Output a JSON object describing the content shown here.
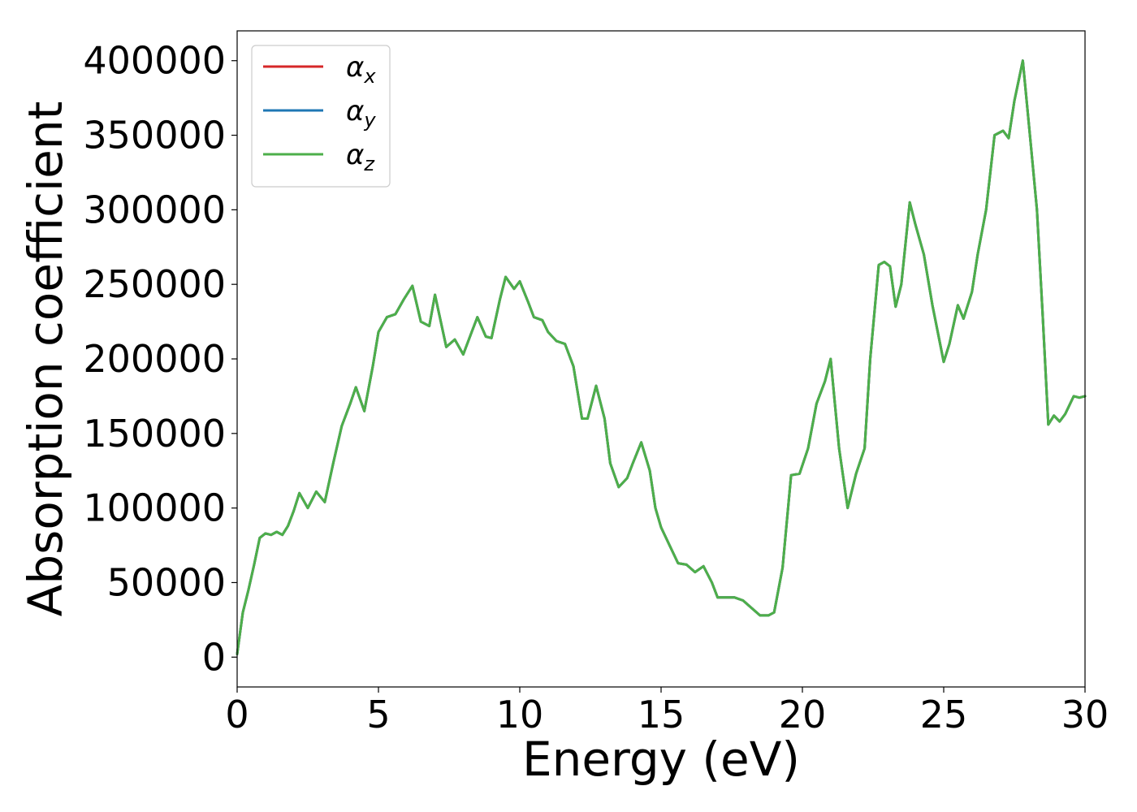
{
  "chart_data": {
    "type": "line",
    "title": "",
    "xlabel": "Energy (eV)",
    "ylabel": "Absorption coefficient",
    "xlim": [
      0,
      30
    ],
    "ylim": [
      -20000,
      420000
    ],
    "xticks": [
      0,
      5,
      10,
      15,
      20,
      25,
      30
    ],
    "yticks": [
      0,
      50000,
      100000,
      150000,
      200000,
      250000,
      300000,
      350000,
      400000
    ],
    "grid": false,
    "legend_position": "top-left",
    "x": [
      0,
      0.2,
      0.4,
      0.6,
      0.8,
      1.0,
      1.2,
      1.4,
      1.6,
      1.8,
      2.0,
      2.2,
      2.5,
      2.8,
      3.1,
      3.4,
      3.7,
      4.0,
      4.2,
      4.5,
      4.8,
      5.0,
      5.3,
      5.6,
      5.9,
      6.2,
      6.5,
      6.8,
      7.0,
      7.4,
      7.7,
      8.0,
      8.3,
      8.5,
      8.8,
      9.0,
      9.3,
      9.5,
      9.8,
      10.0,
      10.3,
      10.5,
      10.8,
      11.0,
      11.3,
      11.6,
      11.9,
      12.2,
      12.4,
      12.7,
      13.0,
      13.2,
      13.5,
      13.8,
      14.0,
      14.3,
      14.6,
      14.8,
      15.0,
      15.3,
      15.6,
      15.9,
      16.2,
      16.5,
      16.8,
      17.0,
      17.3,
      17.6,
      17.9,
      18.2,
      18.5,
      18.8,
      19.0,
      19.3,
      19.6,
      19.9,
      20.2,
      20.5,
      20.8,
      21.0,
      21.3,
      21.6,
      21.9,
      22.2,
      22.4,
      22.7,
      22.9,
      23.1,
      23.3,
      23.5,
      23.8,
      24.0,
      24.3,
      24.6,
      25.0,
      25.2,
      25.5,
      25.7,
      26.0,
      26.2,
      26.5,
      26.8,
      27.1,
      27.3,
      27.5,
      27.8,
      28.1,
      28.3,
      28.5,
      28.7,
      28.9,
      29.1,
      29.3,
      29.6,
      29.8,
      30.0
    ],
    "series": [
      {
        "name": "α_x",
        "color": "#d62728",
        "values": [
          2000,
          30000,
          45000,
          62000,
          80000,
          83000,
          82000,
          84000,
          82000,
          88000,
          98000,
          110000,
          100000,
          111000,
          104000,
          130000,
          155000,
          170000,
          181000,
          165000,
          195000,
          218000,
          228000,
          230000,
          240000,
          249000,
          225000,
          222000,
          243000,
          208000,
          213000,
          203000,
          218000,
          228000,
          215000,
          214000,
          240000,
          255000,
          247000,
          252000,
          238000,
          228000,
          226000,
          218000,
          212000,
          210000,
          195000,
          160000,
          160000,
          182000,
          160000,
          130000,
          114000,
          120000,
          130000,
          144000,
          125000,
          100000,
          87000,
          75000,
          63000,
          62000,
          57000,
          61000,
          50000,
          40000,
          40000,
          40000,
          38000,
          33000,
          28000,
          28000,
          30000,
          60000,
          122000,
          123000,
          140000,
          170000,
          185000,
          200000,
          140000,
          100000,
          123000,
          140000,
          200000,
          263000,
          265000,
          262000,
          235000,
          250000,
          305000,
          290000,
          270000,
          236000,
          198000,
          210000,
          236000,
          227000,
          245000,
          270000,
          300000,
          350000,
          353000,
          348000,
          373000,
          400000,
          340000,
          300000,
          230000,
          156000,
          162000,
          158000,
          163000,
          175000,
          174000,
          175000
        ]
      },
      {
        "name": "α_y",
        "color": "#1f77b4",
        "values": [
          2000,
          30000,
          45000,
          62000,
          80000,
          83000,
          82000,
          84000,
          82000,
          88000,
          98000,
          110000,
          100000,
          111000,
          104000,
          130000,
          155000,
          170000,
          181000,
          165000,
          195000,
          218000,
          228000,
          230000,
          240000,
          249000,
          225000,
          222000,
          243000,
          208000,
          213000,
          203000,
          218000,
          228000,
          215000,
          214000,
          240000,
          255000,
          247000,
          252000,
          238000,
          228000,
          226000,
          218000,
          212000,
          210000,
          195000,
          160000,
          160000,
          182000,
          160000,
          130000,
          114000,
          120000,
          130000,
          144000,
          125000,
          100000,
          87000,
          75000,
          63000,
          62000,
          57000,
          61000,
          50000,
          40000,
          40000,
          40000,
          38000,
          33000,
          28000,
          28000,
          30000,
          60000,
          122000,
          123000,
          140000,
          170000,
          185000,
          200000,
          140000,
          100000,
          123000,
          140000,
          200000,
          263000,
          265000,
          262000,
          235000,
          250000,
          305000,
          290000,
          270000,
          236000,
          198000,
          210000,
          236000,
          227000,
          245000,
          270000,
          300000,
          350000,
          353000,
          348000,
          373000,
          400000,
          340000,
          300000,
          230000,
          156000,
          162000,
          158000,
          163000,
          175000,
          174000,
          175000
        ]
      },
      {
        "name": "α_z",
        "color": "#4daf4a",
        "values": [
          2000,
          30000,
          45000,
          62000,
          80000,
          83000,
          82000,
          84000,
          82000,
          88000,
          98000,
          110000,
          100000,
          111000,
          104000,
          130000,
          155000,
          170000,
          181000,
          165000,
          195000,
          218000,
          228000,
          230000,
          240000,
          249000,
          225000,
          222000,
          243000,
          208000,
          213000,
          203000,
          218000,
          228000,
          215000,
          214000,
          240000,
          255000,
          247000,
          252000,
          238000,
          228000,
          226000,
          218000,
          212000,
          210000,
          195000,
          160000,
          160000,
          182000,
          160000,
          130000,
          114000,
          120000,
          130000,
          144000,
          125000,
          100000,
          87000,
          75000,
          63000,
          62000,
          57000,
          61000,
          50000,
          40000,
          40000,
          40000,
          38000,
          33000,
          28000,
          28000,
          30000,
          60000,
          122000,
          123000,
          140000,
          170000,
          185000,
          200000,
          140000,
          100000,
          123000,
          140000,
          200000,
          263000,
          265000,
          262000,
          235000,
          250000,
          305000,
          290000,
          270000,
          236000,
          198000,
          210000,
          236000,
          227000,
          245000,
          270000,
          300000,
          350000,
          353000,
          348000,
          373000,
          400000,
          340000,
          300000,
          230000,
          156000,
          162000,
          158000,
          163000,
          175000,
          174000,
          175000
        ]
      }
    ],
    "legend": [
      {
        "symbol": "α",
        "sub": "x",
        "color": "#d62728"
      },
      {
        "symbol": "α",
        "sub": "y",
        "color": "#1f77b4"
      },
      {
        "symbol": "α",
        "sub": "z",
        "color": "#4daf4a"
      }
    ]
  }
}
